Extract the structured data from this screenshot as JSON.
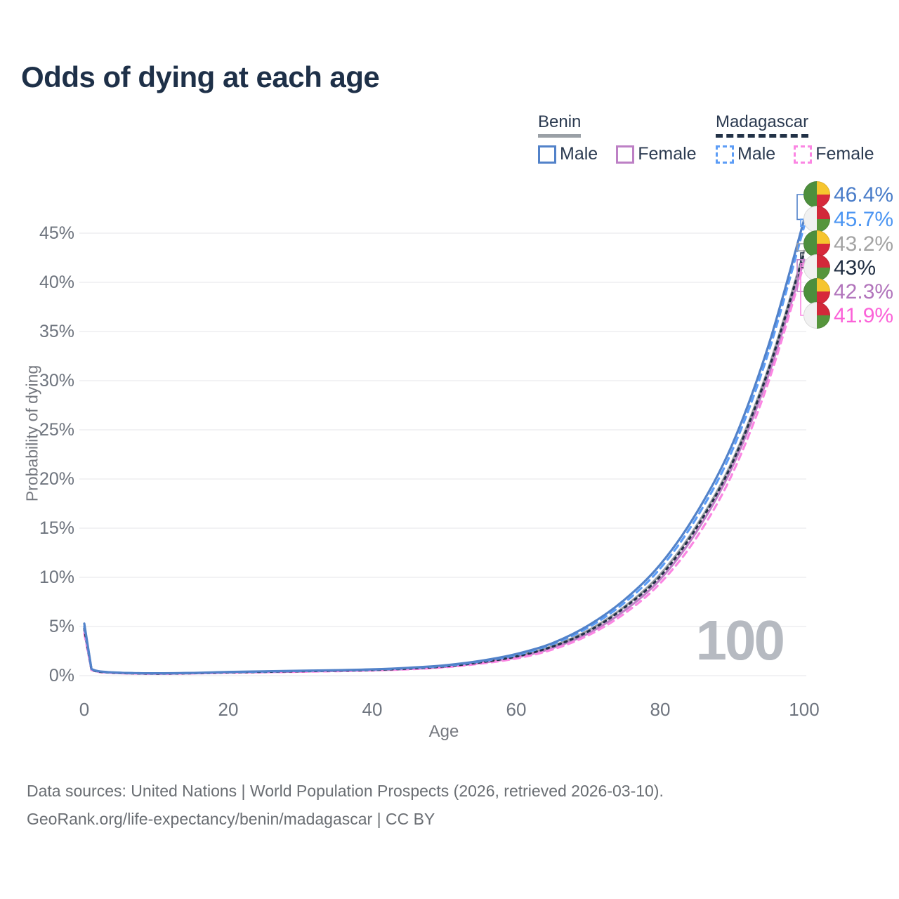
{
  "title": "Odds of dying at each age",
  "watermark": "100",
  "axes": {
    "x_title": "Age",
    "y_title": "Probability of dying",
    "x_ticks": [
      0,
      20,
      40,
      60,
      80,
      100
    ],
    "y_ticks_pct": [
      0,
      5,
      10,
      15,
      20,
      25,
      30,
      35,
      40,
      45
    ]
  },
  "legend": {
    "groups": [
      {
        "name": "Benin",
        "underline_style": "solid",
        "underline_color": "#9aa0a6",
        "items": [
          {
            "label": "Male",
            "color": "#5282c9",
            "dashed": false
          },
          {
            "label": "Female",
            "color": "#bd80c5",
            "dashed": false
          }
        ]
      },
      {
        "name": "Madagascar",
        "underline_style": "dashed",
        "underline_color": "#223247",
        "items": [
          {
            "label": "Male",
            "color": "#5d9df6",
            "dashed": true
          },
          {
            "label": "Female",
            "color": "#fb86e3",
            "dashed": true
          }
        ]
      }
    ]
  },
  "chart_data": {
    "type": "line",
    "title": "Odds of dying at each age",
    "xlabel": "Age",
    "ylabel": "Probability of dying",
    "xlim": [
      0,
      100
    ],
    "ylim_pct": [
      0,
      47
    ],
    "grid": "horizontal",
    "legend_position": "top-right",
    "ages": [
      0,
      1,
      2,
      5,
      10,
      15,
      20,
      25,
      30,
      35,
      40,
      45,
      50,
      55,
      60,
      65,
      70,
      75,
      80,
      85,
      90,
      95,
      100
    ],
    "series": [
      {
        "key": "benin-male",
        "name": "Benin Male",
        "country": "Benin",
        "sex": "male",
        "color": "#5282c9",
        "dash": null,
        "flag": "benin",
        "end_value_pct": 46.4,
        "end_label": "46.4%",
        "label_color": "#4a7dc9",
        "values_pct": [
          5.3,
          0.68,
          0.45,
          0.3,
          0.24,
          0.28,
          0.38,
          0.44,
          0.5,
          0.56,
          0.64,
          0.8,
          1.05,
          1.5,
          2.2,
          3.3,
          5.1,
          7.7,
          11.3,
          16.5,
          23.5,
          33.5,
          46.4
        ]
      },
      {
        "key": "madagascar-male",
        "name": "Madagascar Male",
        "country": "Madagascar",
        "sex": "male",
        "color": "#5d9df6",
        "dash": "9 7",
        "flag": "madagascar",
        "end_value_pct": 45.7,
        "end_label": "45.7%",
        "label_color": "#4b95f2",
        "values_pct": [
          5.0,
          0.66,
          0.44,
          0.29,
          0.23,
          0.27,
          0.36,
          0.42,
          0.48,
          0.54,
          0.62,
          0.77,
          1.0,
          1.45,
          2.1,
          3.2,
          4.9,
          7.4,
          10.9,
          16.0,
          22.9,
          32.8,
          45.7
        ]
      },
      {
        "key": "benin-both",
        "name": "Benin (both sexes)",
        "country": "Benin",
        "sex": "both",
        "color": "#9b9ea4",
        "dash": null,
        "flag": "benin",
        "end_value_pct": 43.2,
        "end_label": "43.2%",
        "label_color": "#a3a3a3",
        "values_pct": [
          5.0,
          0.64,
          0.42,
          0.28,
          0.22,
          0.26,
          0.34,
          0.4,
          0.46,
          0.52,
          0.6,
          0.74,
          0.96,
          1.38,
          2.0,
          3.0,
          4.6,
          7.0,
          10.3,
          15.2,
          21.8,
          31.2,
          43.2
        ]
      },
      {
        "key": "madagascar-both",
        "name": "Madagascar (both sexes)",
        "country": "Madagascar",
        "sex": "both",
        "color": "#223247",
        "dash": "3 6",
        "flag": "madagascar",
        "end_value_pct": 43.0,
        "end_label": "43%",
        "label_color": "#202e42",
        "values_pct": [
          4.8,
          0.62,
          0.41,
          0.27,
          0.21,
          0.25,
          0.33,
          0.39,
          0.45,
          0.51,
          0.58,
          0.72,
          0.94,
          1.35,
          1.95,
          2.95,
          4.5,
          6.9,
          10.1,
          15.0,
          21.6,
          31.0,
          43.0
        ]
      },
      {
        "key": "benin-female",
        "name": "Benin Female",
        "country": "Benin",
        "sex": "female",
        "color": "#bd80c5",
        "dash": null,
        "flag": "benin",
        "end_value_pct": 42.3,
        "end_label": "42.3%",
        "label_color": "#b275bc",
        "values_pct": [
          4.6,
          0.6,
          0.4,
          0.26,
          0.2,
          0.24,
          0.31,
          0.36,
          0.42,
          0.48,
          0.55,
          0.68,
          0.89,
          1.28,
          1.85,
          2.8,
          4.3,
          6.6,
          9.8,
          14.6,
          21.2,
          30.5,
          42.3
        ]
      },
      {
        "key": "madagascar-female",
        "name": "Madagascar Female",
        "country": "Madagascar",
        "sex": "female",
        "color": "#fb86e3",
        "dash": "9 7",
        "flag": "madagascar",
        "end_value_pct": 41.9,
        "end_label": "41.9%",
        "label_color": "#fb62d8",
        "values_pct": [
          4.3,
          0.58,
          0.38,
          0.25,
          0.19,
          0.23,
          0.3,
          0.35,
          0.4,
          0.46,
          0.53,
          0.65,
          0.85,
          1.22,
          1.75,
          2.65,
          4.1,
          6.3,
          9.4,
          14.0,
          20.5,
          29.8,
          41.9
        ]
      }
    ]
  },
  "flag_colors": {
    "benin": {
      "left": "#4d8f3d",
      "top_right": "#f6c52e",
      "bottom_right": "#d7293b"
    },
    "madagascar": {
      "left": "#f1f1f1",
      "top_right": "#d2293a",
      "bottom_right": "#56953c"
    }
  },
  "footer": {
    "line1": "Data sources: United Nations | World Population Prospects (2026, retrieved 2026-03-10).",
    "line2": "GeoRank.org/life-expectancy/benin/madagascar | CC BY"
  }
}
